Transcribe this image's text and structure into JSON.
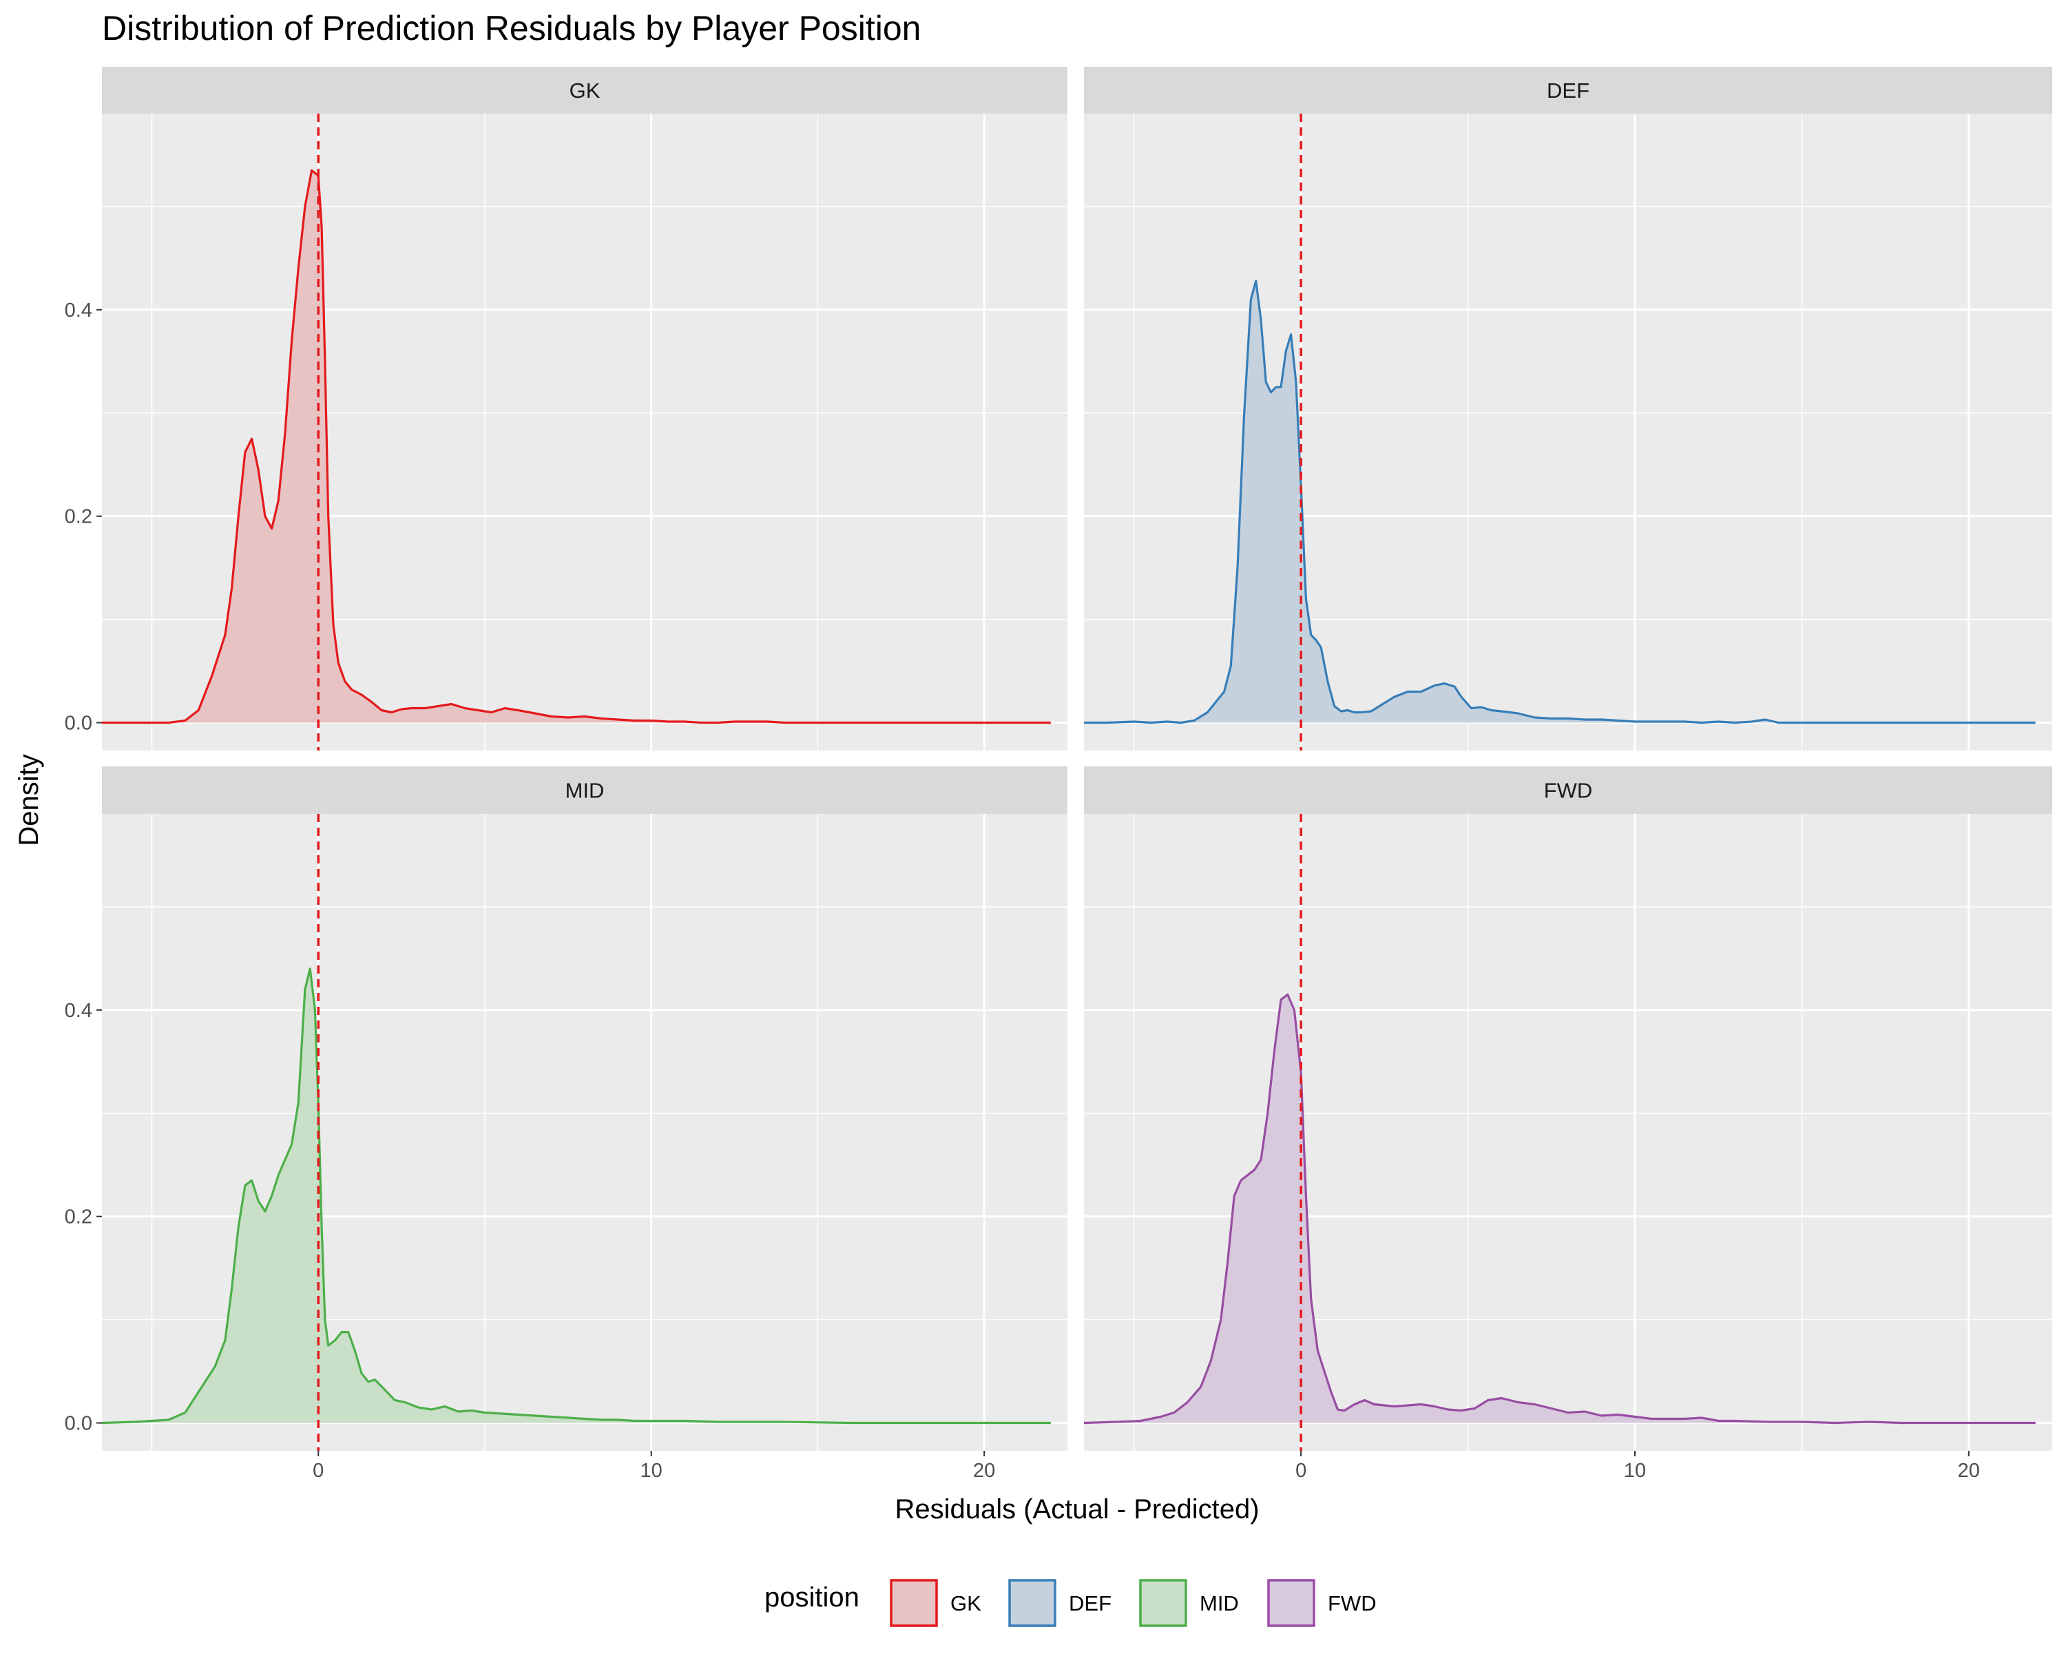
{
  "chart_data": {
    "type": "area",
    "title": "Distribution of Prediction Residuals by Player Position",
    "xlabel": "Residuals (Actual - Predicted)",
    "ylabel": "Density",
    "xlim": [
      -6.5,
      22.5
    ],
    "ylim": [
      -0.027,
      0.59
    ],
    "x_ticks": [
      0,
      10,
      20
    ],
    "y_ticks": [
      0.0,
      0.2,
      0.4
    ],
    "x_tick_labels": [
      "0",
      "10",
      "20"
    ],
    "y_tick_labels": [
      "0.0",
      "0.2",
      "0.4"
    ],
    "reference_line": {
      "x": 0,
      "style": "dashed",
      "color": "#e41a1c"
    },
    "legend": {
      "title": "position",
      "placement": "bottom",
      "entries": [
        "GK",
        "DEF",
        "MID",
        "FWD"
      ]
    },
    "grid": true,
    "facets": [
      "GK",
      "DEF",
      "MID",
      "FWD"
    ],
    "series": [
      {
        "name": "GK",
        "color": "#e41a1c",
        "fill": "#e8c3c4",
        "x": [
          -6.5,
          -4.5,
          -4.0,
          -3.6,
          -3.2,
          -2.8,
          -2.6,
          -2.4,
          -2.2,
          -2.0,
          -1.8,
          -1.6,
          -1.4,
          -1.2,
          -1.0,
          -0.8,
          -0.6,
          -0.4,
          -0.2,
          0.0,
          0.1,
          0.2,
          0.3,
          0.45,
          0.6,
          0.8,
          1.0,
          1.3,
          1.6,
          1.9,
          2.2,
          2.5,
          2.8,
          3.2,
          3.6,
          4.0,
          4.4,
          4.8,
          5.2,
          5.6,
          6.0,
          6.5,
          7.0,
          7.5,
          8.0,
          8.5,
          9.0,
          9.5,
          10.0,
          10.5,
          11.0,
          11.5,
          12.0,
          12.5,
          13.0,
          13.5,
          14.0,
          15.0,
          16.0,
          18.0,
          20.0,
          22.0
        ],
        "values": [
          0.0,
          0.0,
          0.002,
          0.012,
          0.045,
          0.085,
          0.13,
          0.2,
          0.262,
          0.275,
          0.245,
          0.2,
          0.188,
          0.215,
          0.28,
          0.37,
          0.44,
          0.5,
          0.535,
          0.53,
          0.48,
          0.35,
          0.2,
          0.095,
          0.058,
          0.04,
          0.032,
          0.027,
          0.02,
          0.012,
          0.01,
          0.013,
          0.014,
          0.014,
          0.016,
          0.018,
          0.014,
          0.012,
          0.01,
          0.014,
          0.012,
          0.009,
          0.006,
          0.005,
          0.006,
          0.004,
          0.003,
          0.002,
          0.002,
          0.001,
          0.001,
          0.0,
          0.0,
          0.001,
          0.001,
          0.001,
          0.0,
          0.0,
          0.0,
          0.0,
          0.0,
          0.0
        ]
      },
      {
        "name": "DEF",
        "color": "#377eb8",
        "fill": "#c5d2dd",
        "x": [
          -6.5,
          -5.8,
          -5.0,
          -4.5,
          -4.0,
          -3.6,
          -3.2,
          -2.8,
          -2.5,
          -2.3,
          -2.1,
          -1.9,
          -1.7,
          -1.5,
          -1.35,
          -1.2,
          -1.05,
          -0.9,
          -0.75,
          -0.6,
          -0.45,
          -0.3,
          -0.15,
          0.0,
          0.15,
          0.3,
          0.45,
          0.6,
          0.8,
          1.0,
          1.2,
          1.4,
          1.6,
          1.8,
          2.1,
          2.4,
          2.8,
          3.2,
          3.6,
          4.0,
          4.3,
          4.6,
          4.8,
          5.1,
          5.4,
          5.7,
          6.0,
          6.5,
          7.0,
          7.5,
          8.0,
          8.5,
          9.0,
          9.5,
          10.0,
          10.5,
          11.0,
          11.5,
          12.0,
          12.5,
          13.0,
          13.5,
          13.9,
          14.3,
          15.0,
          16.0,
          18.0,
          20.0,
          22.0
        ],
        "values": [
          0.0,
          0.0,
          0.001,
          0.0,
          0.001,
          0.0,
          0.002,
          0.01,
          0.022,
          0.03,
          0.055,
          0.15,
          0.3,
          0.41,
          0.428,
          0.39,
          0.33,
          0.32,
          0.325,
          0.325,
          0.36,
          0.376,
          0.33,
          0.23,
          0.12,
          0.085,
          0.08,
          0.073,
          0.04,
          0.016,
          0.011,
          0.012,
          0.01,
          0.01,
          0.011,
          0.017,
          0.025,
          0.03,
          0.03,
          0.036,
          0.038,
          0.035,
          0.025,
          0.014,
          0.015,
          0.012,
          0.011,
          0.009,
          0.005,
          0.004,
          0.004,
          0.003,
          0.003,
          0.002,
          0.001,
          0.001,
          0.001,
          0.001,
          0.0,
          0.001,
          0.0,
          0.001,
          0.003,
          0.0,
          0.0,
          0.0,
          0.0,
          0.0,
          0.0
        ]
      },
      {
        "name": "MID",
        "color": "#4daf4a",
        "fill": "#c9dfc7",
        "x": [
          -6.5,
          -5.5,
          -5.0,
          -4.5,
          -4.0,
          -3.7,
          -3.4,
          -3.1,
          -2.8,
          -2.6,
          -2.4,
          -2.2,
          -2.0,
          -1.8,
          -1.6,
          -1.4,
          -1.2,
          -1.0,
          -0.8,
          -0.6,
          -0.4,
          -0.25,
          -0.1,
          0.0,
          0.1,
          0.2,
          0.3,
          0.5,
          0.7,
          0.9,
          1.1,
          1.3,
          1.5,
          1.7,
          2.0,
          2.3,
          2.6,
          3.0,
          3.4,
          3.8,
          4.2,
          4.6,
          5.0,
          5.5,
          6.0,
          6.5,
          7.0,
          7.5,
          8.0,
          8.5,
          9.0,
          9.5,
          10.0,
          10.5,
          11.0,
          12.0,
          13.0,
          14.0,
          16.0,
          18.0,
          20.0,
          22.0
        ],
        "values": [
          0.0,
          0.001,
          0.002,
          0.003,
          0.01,
          0.025,
          0.04,
          0.055,
          0.08,
          0.13,
          0.19,
          0.23,
          0.235,
          0.215,
          0.205,
          0.22,
          0.24,
          0.255,
          0.27,
          0.31,
          0.42,
          0.44,
          0.4,
          0.31,
          0.19,
          0.1,
          0.075,
          0.08,
          0.088,
          0.088,
          0.07,
          0.048,
          0.04,
          0.042,
          0.032,
          0.022,
          0.02,
          0.015,
          0.013,
          0.016,
          0.011,
          0.012,
          0.01,
          0.009,
          0.008,
          0.007,
          0.006,
          0.005,
          0.004,
          0.003,
          0.003,
          0.002,
          0.002,
          0.002,
          0.002,
          0.001,
          0.001,
          0.001,
          0.0,
          0.0,
          0.0,
          0.0
        ]
      },
      {
        "name": "FWD",
        "color": "#984ea3",
        "fill": "#d9c9dd",
        "x": [
          -6.5,
          -5.5,
          -4.8,
          -4.2,
          -3.8,
          -3.4,
          -3.0,
          -2.7,
          -2.4,
          -2.2,
          -2.0,
          -1.8,
          -1.6,
          -1.4,
          -1.2,
          -1.0,
          -0.8,
          -0.6,
          -0.4,
          -0.2,
          0.0,
          0.15,
          0.3,
          0.5,
          0.7,
          0.9,
          1.1,
          1.3,
          1.6,
          1.9,
          2.2,
          2.5,
          2.8,
          3.2,
          3.6,
          4.0,
          4.4,
          4.8,
          5.2,
          5.6,
          6.0,
          6.5,
          7.0,
          7.5,
          8.0,
          8.5,
          9.0,
          9.5,
          10.0,
          10.5,
          11.0,
          11.5,
          12.0,
          12.5,
          13.0,
          14.0,
          15.0,
          16.0,
          17.0,
          18.0,
          20.0,
          22.0
        ],
        "values": [
          0.0,
          0.001,
          0.002,
          0.006,
          0.01,
          0.02,
          0.035,
          0.06,
          0.1,
          0.155,
          0.22,
          0.235,
          0.24,
          0.245,
          0.255,
          0.3,
          0.36,
          0.41,
          0.415,
          0.4,
          0.34,
          0.22,
          0.12,
          0.07,
          0.05,
          0.03,
          0.013,
          0.012,
          0.018,
          0.022,
          0.018,
          0.017,
          0.016,
          0.017,
          0.018,
          0.016,
          0.013,
          0.012,
          0.014,
          0.022,
          0.024,
          0.02,
          0.018,
          0.014,
          0.01,
          0.011,
          0.007,
          0.008,
          0.006,
          0.004,
          0.004,
          0.004,
          0.005,
          0.002,
          0.002,
          0.001,
          0.001,
          0.0,
          0.001,
          0.0,
          0.0,
          0.0
        ]
      }
    ]
  }
}
